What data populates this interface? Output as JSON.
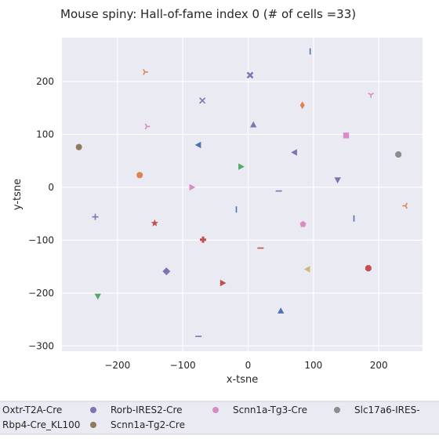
{
  "chart_data": {
    "type": "scatter",
    "title": "Mouse spiny: Hall-of-fame index 0 (# of cells =33)",
    "xlabel": "x-tsne",
    "ylabel": "y-tsne",
    "xlim": [
      -285,
      267
    ],
    "ylim": [
      -310,
      283
    ],
    "xticks": [
      -200,
      -100,
      0,
      100,
      200
    ],
    "yticks": [
      -300,
      -200,
      -100,
      0,
      100,
      200
    ],
    "xtick_labels": [
      "−200",
      "−100",
      "0",
      "100",
      "200"
    ],
    "ytick_labels": [
      "−300",
      "−200",
      "−100",
      "0",
      "100",
      "200"
    ],
    "grid": true,
    "legend_position": "bottom",
    "legend": [
      {
        "label": "Oxtr-T2A-Cre",
        "color": "#4c72b0"
      },
      {
        "label": "Rorb-IRES2-Cre",
        "color": "#8172b2"
      },
      {
        "label": "Scnn1a-Tg3-Cre",
        "color": "#da8bc3"
      },
      {
        "label": "Slc17a6-IRES-",
        "color": "#8c8c8c"
      },
      {
        "label": "Rbp4-Cre_KL100",
        "color": "#8c6d31"
      },
      {
        "label": "Scnn1a-Tg2-Cre",
        "color": "#937860"
      }
    ],
    "points": [
      {
        "x": 95,
        "y": 257,
        "marker": "vline",
        "color": "#4c72b0"
      },
      {
        "x": -158,
        "y": 218,
        "marker": "tri-right",
        "color": "#dd8452"
      },
      {
        "x": 3,
        "y": 212,
        "marker": "xfilled",
        "color": "#8172b2"
      },
      {
        "x": -70,
        "y": 164,
        "marker": "x",
        "color": "#8172b2"
      },
      {
        "x": 83,
        "y": 155,
        "marker": "thin-diamond",
        "color": "#dd8452"
      },
      {
        "x": 188,
        "y": 175,
        "marker": "tri-down",
        "color": "#da8bc3"
      },
      {
        "x": 8,
        "y": 118,
        "marker": "triangle-up",
        "color": "#8172b2"
      },
      {
        "x": -155,
        "y": 115,
        "marker": "tri-right",
        "color": "#da8bc3"
      },
      {
        "x": 150,
        "y": 98,
        "marker": "square",
        "color": "#da8bc3"
      },
      {
        "x": -259,
        "y": 76,
        "marker": "circle",
        "color": "#937860"
      },
      {
        "x": 230,
        "y": 62,
        "marker": "octagon",
        "color": "#8c8c8c"
      },
      {
        "x": -76,
        "y": 80,
        "marker": "triangle-left",
        "color": "#4c72b0"
      },
      {
        "x": 71,
        "y": 66,
        "marker": "triangle-left",
        "color": "#8172b2"
      },
      {
        "x": -11,
        "y": 39,
        "marker": "triangle-right",
        "color": "#55a868"
      },
      {
        "x": -166,
        "y": 23,
        "marker": "circle",
        "color": "#dd8452"
      },
      {
        "x": 137,
        "y": 14,
        "marker": "triangle-down",
        "color": "#8172b2"
      },
      {
        "x": -86,
        "y": 0,
        "marker": "triangle-right",
        "color": "#da8bc3"
      },
      {
        "x": 47,
        "y": -7,
        "marker": "hline",
        "color": "#8172b2"
      },
      {
        "x": -18,
        "y": -42,
        "marker": "vline",
        "color": "#4c72b0"
      },
      {
        "x": 162,
        "y": -59,
        "marker": "vline",
        "color": "#4c72b0"
      },
      {
        "x": 241,
        "y": -35,
        "marker": "tri-left",
        "color": "#dd8452"
      },
      {
        "x": -234,
        "y": -56,
        "marker": "plus",
        "color": "#8172b2"
      },
      {
        "x": -143,
        "y": -68,
        "marker": "star",
        "color": "#c44e52"
      },
      {
        "x": 84,
        "y": -70,
        "marker": "pentagon",
        "color": "#da8bc3"
      },
      {
        "x": -69,
        "y": -99,
        "marker": "plus-filled",
        "color": "#c44e52"
      },
      {
        "x": 19,
        "y": -115,
        "marker": "hline",
        "color": "#c44e52"
      },
      {
        "x": -125,
        "y": -159,
        "marker": "diamond",
        "color": "#8172b2"
      },
      {
        "x": 91,
        "y": -155,
        "marker": "triangle-left",
        "color": "#ccb974"
      },
      {
        "x": 184,
        "y": -153,
        "marker": "octagon",
        "color": "#c44e52"
      },
      {
        "x": -39,
        "y": -181,
        "marker": "triangle-right",
        "color": "#c44e52"
      },
      {
        "x": -230,
        "y": -206,
        "marker": "triangle-down",
        "color": "#55a868"
      },
      {
        "x": 50,
        "y": -234,
        "marker": "triangle-up",
        "color": "#4c72b0"
      },
      {
        "x": -76,
        "y": -282,
        "marker": "hline",
        "color": "#8172b2"
      }
    ]
  }
}
